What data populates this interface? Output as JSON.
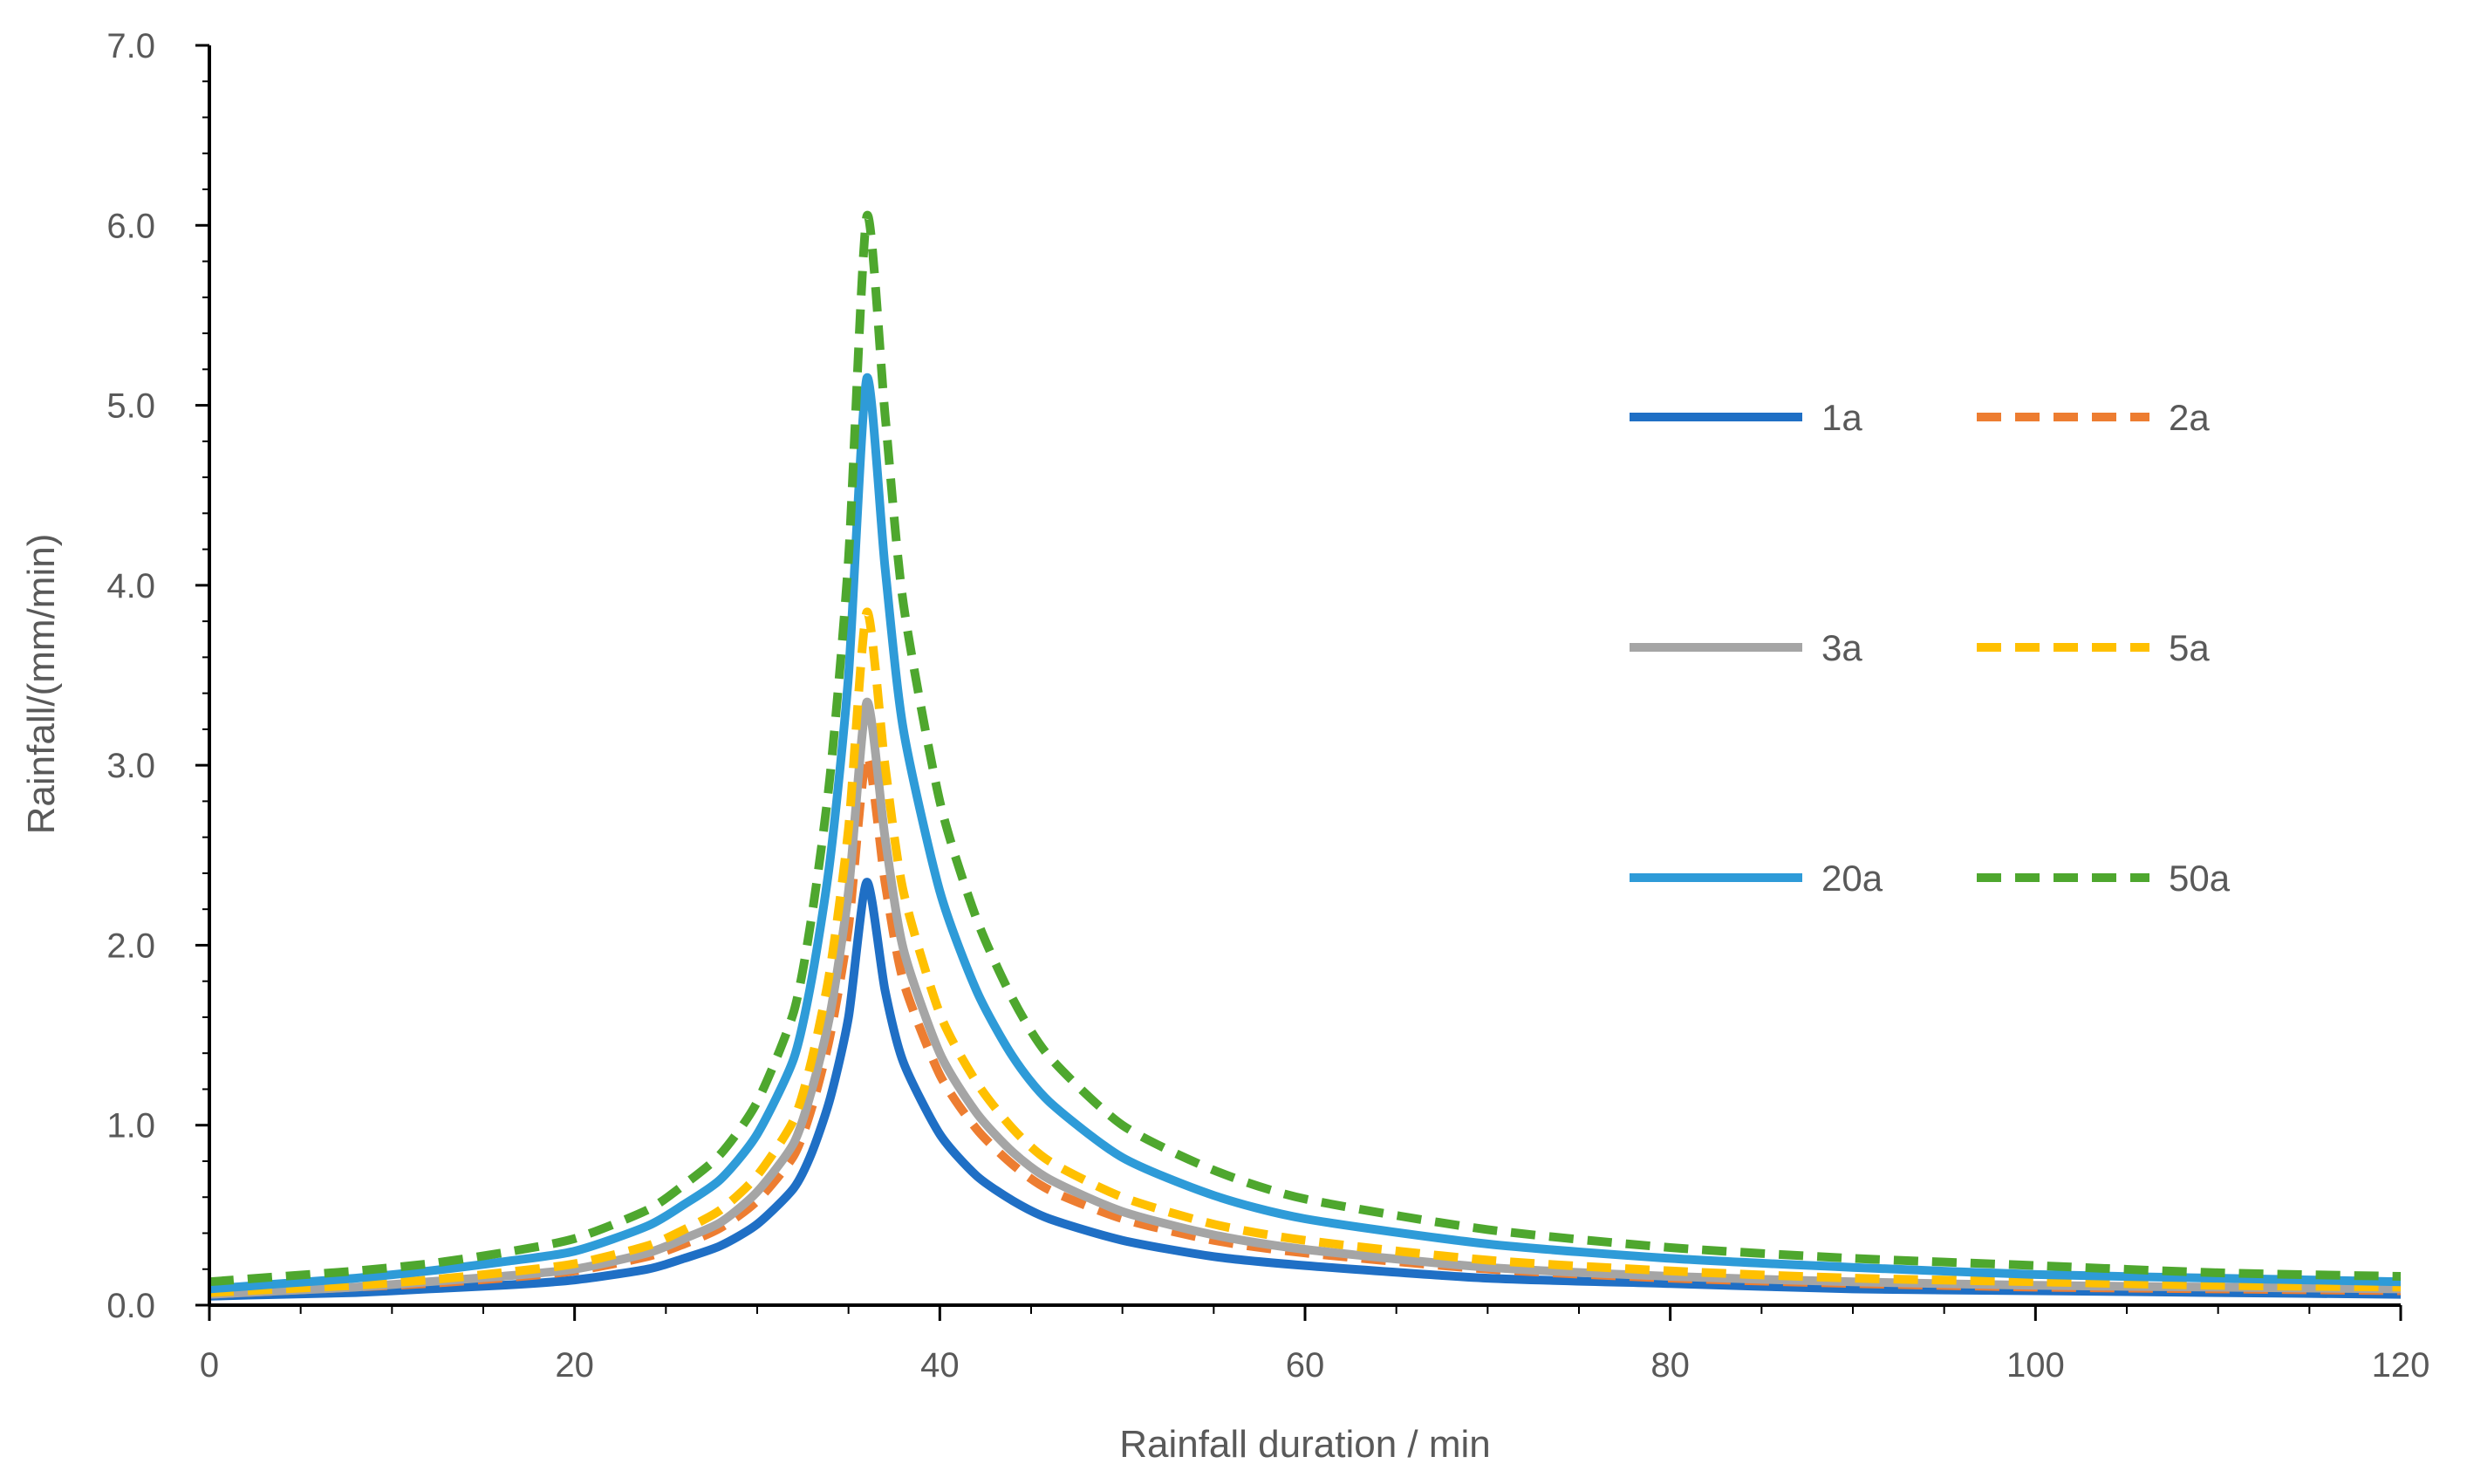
{
  "chart_data": {
    "type": "line",
    "title": "",
    "xlabel": "Rainfall duration / min",
    "ylabel": "Rainfall/(mm/min)",
    "xlim": [
      0,
      120
    ],
    "ylim": [
      0,
      7
    ],
    "xticks": [
      0,
      20,
      40,
      60,
      80,
      100,
      120
    ],
    "xtick_labels": [
      "0",
      "20",
      "40",
      "60",
      "80",
      "100",
      "120"
    ],
    "yticks": [
      0,
      1,
      2,
      3,
      4,
      5,
      6,
      7
    ],
    "ytick_labels": [
      "0.0",
      "1.0",
      "2.0",
      "3.0",
      "4.0",
      "5.0",
      "6.0",
      "7.0"
    ],
    "grid": false,
    "legend_position": "right",
    "x": [
      0,
      4,
      8,
      12,
      16,
      20,
      24,
      26,
      28,
      30,
      32,
      33,
      34,
      35,
      36,
      37,
      38,
      40,
      42,
      44,
      46,
      50,
      55,
      60,
      70,
      80,
      90,
      100,
      110,
      120
    ],
    "series": [
      {
        "name": "1a",
        "color": "#1F6FC5",
        "dash": "solid",
        "values": [
          0.05,
          0.06,
          0.07,
          0.09,
          0.11,
          0.14,
          0.2,
          0.26,
          0.33,
          0.45,
          0.65,
          0.85,
          1.15,
          1.6,
          2.35,
          1.75,
          1.35,
          0.95,
          0.72,
          0.58,
          0.48,
          0.36,
          0.27,
          0.22,
          0.15,
          0.12,
          0.09,
          0.08,
          0.07,
          0.06
        ]
      },
      {
        "name": "2a",
        "color": "#ED7D31",
        "dash": "dashed",
        "values": [
          0.06,
          0.08,
          0.1,
          0.12,
          0.15,
          0.19,
          0.27,
          0.34,
          0.43,
          0.58,
          0.83,
          1.1,
          1.5,
          2.1,
          3.05,
          2.35,
          1.8,
          1.28,
          0.98,
          0.78,
          0.64,
          0.48,
          0.36,
          0.29,
          0.2,
          0.15,
          0.12,
          0.1,
          0.09,
          0.08
        ]
      },
      {
        "name": "3a",
        "color": "#A5A5A5",
        "dash": "solid",
        "values": [
          0.06,
          0.08,
          0.1,
          0.13,
          0.16,
          0.2,
          0.29,
          0.37,
          0.46,
          0.63,
          0.9,
          1.2,
          1.62,
          2.3,
          3.35,
          2.6,
          1.98,
          1.4,
          1.07,
          0.85,
          0.7,
          0.52,
          0.39,
          0.31,
          0.21,
          0.16,
          0.13,
          0.11,
          0.1,
          0.09
        ]
      },
      {
        "name": "5a",
        "color": "#FFC000",
        "dash": "dashed",
        "values": [
          0.07,
          0.09,
          0.11,
          0.14,
          0.18,
          0.23,
          0.33,
          0.42,
          0.53,
          0.72,
          1.03,
          1.37,
          1.87,
          2.65,
          3.85,
          3.0,
          2.3,
          1.62,
          1.24,
          0.98,
          0.8,
          0.6,
          0.45,
          0.36,
          0.25,
          0.19,
          0.15,
          0.13,
          0.11,
          0.1
        ]
      },
      {
        "name": "20a",
        "color": "#2E9BD8",
        "dash": "solid",
        "values": [
          0.09,
          0.12,
          0.15,
          0.19,
          0.24,
          0.3,
          0.44,
          0.56,
          0.7,
          0.95,
          1.37,
          1.82,
          2.48,
          3.5,
          5.15,
          4.1,
          3.2,
          2.3,
          1.75,
          1.38,
          1.13,
          0.82,
          0.61,
          0.48,
          0.34,
          0.26,
          0.21,
          0.17,
          0.15,
          0.13
        ]
      },
      {
        "name": "50a",
        "color": "#4EA72E",
        "dash": "dashed",
        "values": [
          0.13,
          0.16,
          0.19,
          0.23,
          0.29,
          0.37,
          0.53,
          0.67,
          0.84,
          1.13,
          1.63,
          2.17,
          2.95,
          4.15,
          6.05,
          4.95,
          3.9,
          2.8,
          2.15,
          1.7,
          1.38,
          1.0,
          0.75,
          0.59,
          0.42,
          0.32,
          0.26,
          0.22,
          0.18,
          0.16
        ]
      }
    ]
  }
}
